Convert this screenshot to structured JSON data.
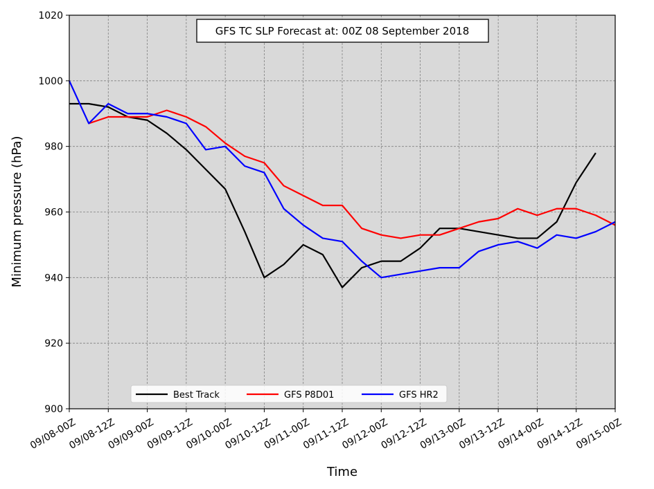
{
  "chart_data": {
    "type": "line",
    "title": "GFS TC SLP Forecast at: 00Z 08 September 2018",
    "xlabel": "Time",
    "ylabel": "Minimum pressure (hPa)",
    "ylim": [
      900,
      1020
    ],
    "yticks": [
      900,
      920,
      940,
      960,
      980,
      1000,
      1020
    ],
    "xticks": [
      "09/08-00Z",
      "09/08-12Z",
      "09/09-00Z",
      "09/09-12Z",
      "09/10-00Z",
      "09/10-12Z",
      "09/11-00Z",
      "09/11-12Z",
      "09/12-00Z",
      "09/12-12Z",
      "09/13-00Z",
      "09/13-12Z",
      "09/14-00Z",
      "09/14-12Z",
      "09/15-00Z"
    ],
    "x_step_hours": 6,
    "grid": true,
    "legend_position": "bottom-left",
    "background": "#d9d9d9",
    "series": [
      {
        "name": "Best Track",
        "color": "#000000",
        "start_index": 0,
        "values": [
          993,
          993,
          992,
          989,
          988,
          984,
          979,
          973,
          967,
          954,
          940,
          944,
          950,
          947,
          937,
          943,
          945,
          945,
          949,
          955,
          955,
          954,
          953,
          952,
          952,
          957,
          969,
          978
        ]
      },
      {
        "name": "GFS P8D01",
        "color": "#ff0000",
        "start_index": 1,
        "values": [
          987,
          989,
          989,
          989,
          991,
          989,
          986,
          981,
          977,
          975,
          968,
          965,
          962,
          962,
          955,
          953,
          952,
          953,
          953,
          955,
          957,
          958,
          961,
          959,
          961,
          961,
          959,
          956
        ]
      },
      {
        "name": "GFS HR2",
        "color": "#0000ff",
        "start_index": 0,
        "values": [
          1000,
          987,
          993,
          990,
          990,
          989,
          987,
          979,
          980,
          974,
          972,
          961,
          956,
          952,
          951,
          945,
          940,
          941,
          942,
          943,
          943,
          948,
          950,
          951,
          949,
          953,
          952,
          954,
          957
        ]
      }
    ]
  }
}
